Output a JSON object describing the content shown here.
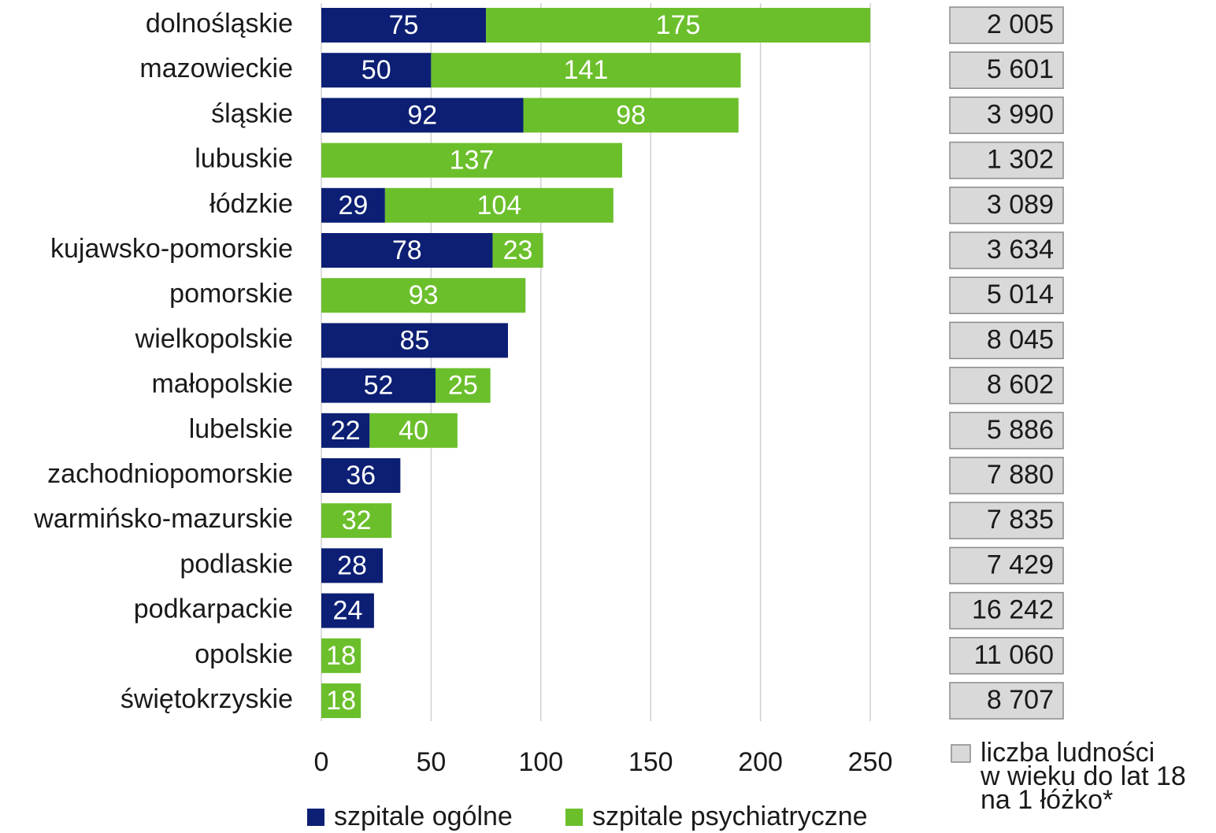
{
  "chart_data": {
    "type": "stacked_bar_horizontal",
    "categories": [
      "dolnośląskie",
      "mazowieckie",
      "śląskie",
      "lubuskie",
      "łódzkie",
      "kujawsko-pomorskie",
      "pomorskie",
      "wielkopolskie",
      "małopolskie",
      "lubelskie",
      "zachodniopomorskie",
      "warmińsko-mazurskie",
      "podlaskie",
      "podkarpackie",
      "opolskie",
      "świętokrzyskie"
    ],
    "series": [
      {
        "name": "szpitale ogólne",
        "color": "#0c1f74",
        "values": [
          75,
          50,
          92,
          null,
          29,
          78,
          null,
          85,
          52,
          22,
          36,
          null,
          28,
          24,
          null,
          null
        ]
      },
      {
        "name": "szpitale psychiatryczne",
        "color": "#6bbf2b",
        "values": [
          175,
          141,
          98,
          137,
          104,
          23,
          93,
          null,
          25,
          40,
          null,
          32,
          null,
          null,
          18,
          18
        ]
      }
    ],
    "xlim": [
      0,
      250
    ],
    "xticks": [
      0,
      50,
      100,
      150,
      200,
      250
    ],
    "grid": true,
    "side_column": {
      "name_lines": [
        "liczba ludności",
        "w wieku do lat 18",
        "na 1 łóżko*"
      ],
      "color": "#d9d9d9",
      "values": [
        2005,
        5601,
        3990,
        1302,
        3089,
        3634,
        5014,
        8045,
        8602,
        5886,
        7880,
        7835,
        7429,
        16242,
        11060,
        8707
      ],
      "value_labels": [
        "2 005",
        "5 601",
        "3 990",
        "1 302",
        "3 089",
        "3 634",
        "5 014",
        "8 045",
        "8 602",
        "5 886",
        "7 880",
        "7 835",
        "7 429",
        "16 242",
        "11 060",
        "8 707"
      ]
    }
  }
}
